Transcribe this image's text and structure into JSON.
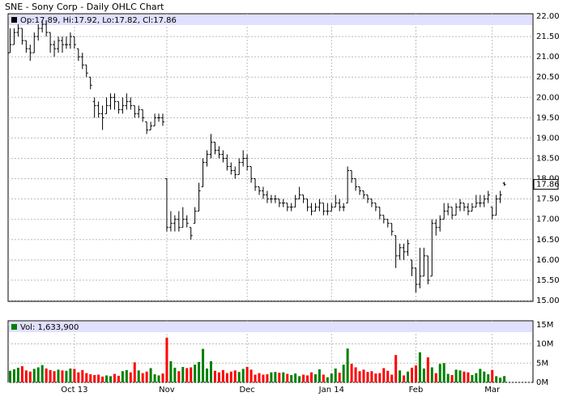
{
  "chart_data": {
    "type": "ohlc",
    "title": "SNE - Sony Corp - Daily OHLC Chart",
    "legend": "Op:17.89, Hi:17.92, Lo:17.82, Cl:17.86",
    "volume_legend": "Vol: 1,633,900",
    "color": "#000000",
    "up_color": "#008000",
    "down_color": "#ff0000",
    "legend_band_color": "#e0e0ff",
    "grid": true,
    "categories": [
      null,
      null,
      null,
      null,
      null,
      null,
      null,
      null,
      null,
      null,
      null,
      null,
      null,
      null,
      null,
      null,
      "Oct 13",
      null,
      null,
      null,
      null,
      null,
      null,
      null,
      null,
      null,
      null,
      null,
      null,
      null,
      null,
      null,
      null,
      null,
      null,
      null,
      null,
      null,
      null,
      "Nov",
      null,
      null,
      null,
      null,
      null,
      null,
      null,
      null,
      null,
      null,
      null,
      null,
      null,
      null,
      null,
      null,
      null,
      null,
      null,
      "Dec",
      null,
      null,
      null,
      null,
      null,
      null,
      null,
      null,
      null,
      null,
      null,
      null,
      null,
      null,
      null,
      null,
      null,
      null,
      null,
      null,
      "Jan 14",
      null,
      null,
      null,
      null,
      null,
      null,
      null,
      null,
      null,
      null,
      null,
      null,
      null,
      null,
      null,
      null,
      null,
      null,
      null,
      null,
      "Feb",
      null,
      null,
      null,
      null,
      null,
      null,
      null,
      null,
      null,
      null,
      null,
      null,
      null,
      null,
      null,
      null,
      null,
      null,
      "Mar",
      null,
      null,
      null
    ],
    "open": [
      21.1,
      21.3,
      21.6,
      21.7,
      21.4,
      21.2,
      21.1,
      21.5,
      21.7,
      21.8,
      21.6,
      21.3,
      21.2,
      21.4,
      21.3,
      21.3,
      21.5,
      21.2,
      21.0,
      20.8,
      20.5,
      19.9,
      19.8,
      19.6,
      19.6,
      19.8,
      20.0,
      19.9,
      19.7,
      19.8,
      19.9,
      19.8,
      19.6,
      19.7,
      19.4,
      19.2,
      19.3,
      19.5,
      19.5,
      18.0,
      16.8,
      16.9,
      17.0,
      16.8,
      17.0,
      16.8,
      16.9,
      17.2,
      17.8,
      18.4,
      18.6,
      18.9,
      18.7,
      18.6,
      18.5,
      18.3,
      18.2,
      18.1,
      18.4,
      18.5,
      18.3,
      18.0,
      17.8,
      17.7,
      17.6,
      17.5,
      17.5,
      17.5,
      17.4,
      17.4,
      17.3,
      17.3,
      17.5,
      17.6,
      17.5,
      17.3,
      17.2,
      17.3,
      17.4,
      17.2,
      17.2,
      17.3,
      17.4,
      17.3,
      17.4,
      18.2,
      18.0,
      17.8,
      17.7,
      17.6,
      17.5,
      17.4,
      17.3,
      17.1,
      17.0,
      16.9,
      16.6,
      16.1,
      16.3,
      16.2,
      16.0,
      15.8,
      15.4,
      15.6,
      16.1,
      15.6,
      16.9,
      16.8,
      17.0,
      17.2,
      17.3,
      17.1,
      17.3,
      17.4,
      17.3,
      17.2,
      17.3,
      17.4,
      17.4,
      17.5,
      17.3,
      17.1,
      17.5,
      17.89
    ],
    "high": [
      21.7,
      21.7,
      21.8,
      21.7,
      21.4,
      21.3,
      21.6,
      21.8,
      21.9,
      21.9,
      21.6,
      21.4,
      21.5,
      21.5,
      21.5,
      21.6,
      21.5,
      21.2,
      21.1,
      20.8,
      20.5,
      20.0,
      19.9,
      19.8,
      20.0,
      20.1,
      20.1,
      19.9,
      20.0,
      20.1,
      20.0,
      19.8,
      19.8,
      19.7,
      19.4,
      19.4,
      19.6,
      19.6,
      19.6,
      18.0,
      17.2,
      17.1,
      17.2,
      17.3,
      17.1,
      16.8,
      17.3,
      17.9,
      18.5,
      18.7,
      19.1,
      18.9,
      18.8,
      18.7,
      18.6,
      18.4,
      18.3,
      18.5,
      18.7,
      18.6,
      18.3,
      18.0,
      17.8,
      17.8,
      17.7,
      17.6,
      17.6,
      17.5,
      17.5,
      17.4,
      17.4,
      17.6,
      17.8,
      17.6,
      17.5,
      17.4,
      17.4,
      17.5,
      17.4,
      17.4,
      17.4,
      17.6,
      17.5,
      17.4,
      18.3,
      18.2,
      18.0,
      17.8,
      17.7,
      17.6,
      17.5,
      17.4,
      17.3,
      17.1,
      17.0,
      16.9,
      16.6,
      16.4,
      16.4,
      16.5,
      16.0,
      15.8,
      16.3,
      16.3,
      16.1,
      17.0,
      17.0,
      17.1,
      17.4,
      17.4,
      17.3,
      17.4,
      17.5,
      17.4,
      17.4,
      17.4,
      17.6,
      17.6,
      17.6,
      17.7,
      17.3,
      17.6,
      17.7,
      17.92
    ],
    "low": [
      21.1,
      21.3,
      21.5,
      21.3,
      21.1,
      20.9,
      21.1,
      21.4,
      21.6,
      21.5,
      21.1,
      21.0,
      21.1,
      21.1,
      21.2,
      21.2,
      21.2,
      20.9,
      20.7,
      20.5,
      20.2,
      19.5,
      19.5,
      19.2,
      19.6,
      19.7,
      19.7,
      19.6,
      19.6,
      19.7,
      19.7,
      19.5,
      19.5,
      19.4,
      19.1,
      19.2,
      19.3,
      19.4,
      19.3,
      16.7,
      16.7,
      16.7,
      16.7,
      16.8,
      16.8,
      16.5,
      16.9,
      17.2,
      17.8,
      18.3,
      18.5,
      18.6,
      18.5,
      18.4,
      18.2,
      18.1,
      18.0,
      18.1,
      18.3,
      18.2,
      17.9,
      17.7,
      17.6,
      17.5,
      17.4,
      17.4,
      17.4,
      17.3,
      17.3,
      17.2,
      17.2,
      17.3,
      17.5,
      17.4,
      17.2,
      17.1,
      17.2,
      17.2,
      17.1,
      17.1,
      17.2,
      17.3,
      17.2,
      17.2,
      17.4,
      17.9,
      17.7,
      17.6,
      17.5,
      17.4,
      17.3,
      17.2,
      17.0,
      16.9,
      16.8,
      16.6,
      15.8,
      16.0,
      16.0,
      16.1,
      15.6,
      15.2,
      15.3,
      15.6,
      15.4,
      15.6,
      16.6,
      16.7,
      17.0,
      17.1,
      17.0,
      17.1,
      17.2,
      17.2,
      17.1,
      17.2,
      17.3,
      17.3,
      17.3,
      17.4,
      17.0,
      17.1,
      17.4,
      17.82
    ],
    "close": [
      21.3,
      21.6,
      21.7,
      21.4,
      21.2,
      21.1,
      21.5,
      21.7,
      21.8,
      21.6,
      21.3,
      21.2,
      21.4,
      21.3,
      21.3,
      21.5,
      21.3,
      21.0,
      20.8,
      20.6,
      20.3,
      19.8,
      19.6,
      19.5,
      19.8,
      20.0,
      19.9,
      19.7,
      19.8,
      19.9,
      19.8,
      19.6,
      19.7,
      19.5,
      19.2,
      19.3,
      19.5,
      19.5,
      19.4,
      16.8,
      16.9,
      17.0,
      16.8,
      17.0,
      16.9,
      16.6,
      17.2,
      17.7,
      18.4,
      18.6,
      18.9,
      18.7,
      18.6,
      18.5,
      18.3,
      18.2,
      18.1,
      18.4,
      18.5,
      18.3,
      18.0,
      17.8,
      17.7,
      17.6,
      17.5,
      17.5,
      17.5,
      17.4,
      17.4,
      17.3,
      17.3,
      17.5,
      17.6,
      17.5,
      17.3,
      17.2,
      17.3,
      17.4,
      17.2,
      17.2,
      17.3,
      17.4,
      17.3,
      17.3,
      18.2,
      18.0,
      17.8,
      17.7,
      17.6,
      17.5,
      17.4,
      17.3,
      17.1,
      17.0,
      16.9,
      16.7,
      16.1,
      16.3,
      16.2,
      16.4,
      15.8,
      15.4,
      15.6,
      16.1,
      15.5,
      16.9,
      16.8,
      17.0,
      17.2,
      17.3,
      17.1,
      17.3,
      17.4,
      17.3,
      17.2,
      17.3,
      17.4,
      17.4,
      17.5,
      17.6,
      17.1,
      17.5,
      17.6,
      17.86
    ],
    "volume": [
      3.0,
      3.4,
      3.8,
      4.2,
      3.1,
      2.8,
      3.5,
      3.9,
      4.5,
      3.6,
      3.2,
      2.9,
      3.3,
      3.1,
      3.0,
      3.6,
      3.5,
      2.6,
      3.2,
      2.4,
      2.1,
      1.9,
      2.0,
      1.5,
      1.8,
      1.6,
      2.2,
      1.7,
      2.9,
      3.2,
      2.6,
      5.2,
      3.1,
      2.4,
      2.8,
      3.7,
      2.1,
      1.8,
      2.3,
      11.6,
      5.5,
      3.8,
      2.9,
      4.0,
      3.7,
      3.9,
      4.6,
      5.3,
      8.7,
      3.6,
      5.5,
      3.0,
      2.6,
      3.2,
      2.4,
      2.8,
      3.1,
      2.7,
      3.5,
      4.0,
      3.3,
      2.0,
      2.4,
      2.0,
      2.1,
      2.6,
      2.7,
      2.5,
      2.6,
      2.2,
      1.9,
      2.3,
      1.6,
      2.0,
      1.8,
      2.6,
      2.1,
      3.4,
      2.0,
      1.3,
      2.3,
      3.6,
      2.5,
      4.6,
      8.8,
      4.8,
      3.9,
      2.9,
      3.3,
      2.7,
      2.9,
      2.3,
      2.4,
      3.7,
      3.0,
      2.0,
      7.1,
      3.1,
      1.8,
      2.8,
      3.8,
      4.4,
      7.8,
      3.6,
      6.5,
      3.9,
      2.4,
      4.8,
      5.0,
      2.2,
      1.9,
      3.3,
      3.1,
      2.8,
      2.6,
      1.9,
      2.4,
      3.5,
      2.8,
      2.1,
      3.2,
      1.6,
      1.2,
      1.6339
    ],
    "ylim": [
      15,
      22
    ],
    "yticks": [
      {
        "value": 15,
        "label": "15.00"
      },
      {
        "value": 15.5,
        "label": "15.50"
      },
      {
        "value": 16,
        "label": "16.00"
      },
      {
        "value": 16.5,
        "label": "16.50"
      },
      {
        "value": 17,
        "label": "17.00"
      },
      {
        "value": 17.5,
        "label": "17.50"
      },
      {
        "value": 18,
        "label": "18.00"
      },
      {
        "value": 18.5,
        "label": "18.50"
      },
      {
        "value": 19,
        "label": "19.00"
      },
      {
        "value": 19.5,
        "label": "19.50"
      },
      {
        "value": 20,
        "label": "20.00"
      },
      {
        "value": 20.5,
        "label": "20.50"
      },
      {
        "value": 21,
        "label": "21.00"
      },
      {
        "value": 21.5,
        "label": "21.50"
      },
      {
        "value": 22,
        "label": "22.00"
      }
    ],
    "volume_ylim": [
      0,
      16
    ],
    "volume_ticks": [
      {
        "value": 0,
        "label": "0M"
      },
      {
        "value": 5,
        "label": "5M"
      },
      {
        "value": 10,
        "label": "10M"
      },
      {
        "value": 15,
        "label": "15M"
      }
    ]
  }
}
